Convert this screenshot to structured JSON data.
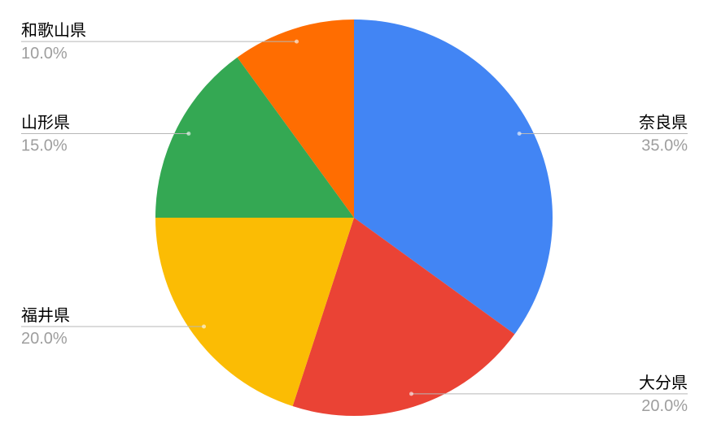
{
  "chart_data": {
    "type": "pie",
    "title": "",
    "categories": [
      "奈良県",
      "大分県",
      "福井県",
      "山形県",
      "和歌山県"
    ],
    "values": [
      35,
      20,
      20,
      15,
      10
    ],
    "percent_labels": [
      "35.0%",
      "20.0%",
      "20.0%",
      "15.0%",
      "10.0%"
    ],
    "colors": [
      "#4285F4",
      "#EA4335",
      "#FBBC04",
      "#34A853",
      "#FF6D01"
    ],
    "start_angle_deg": 0,
    "direction": "clockwise",
    "legend_position": "outside-labels-with-leader-lines",
    "background_color": "#FFFFFF",
    "label_text_color": "#000000",
    "percent_text_color": "#9E9E9E",
    "leader_line_color": "#B7B7B7"
  }
}
